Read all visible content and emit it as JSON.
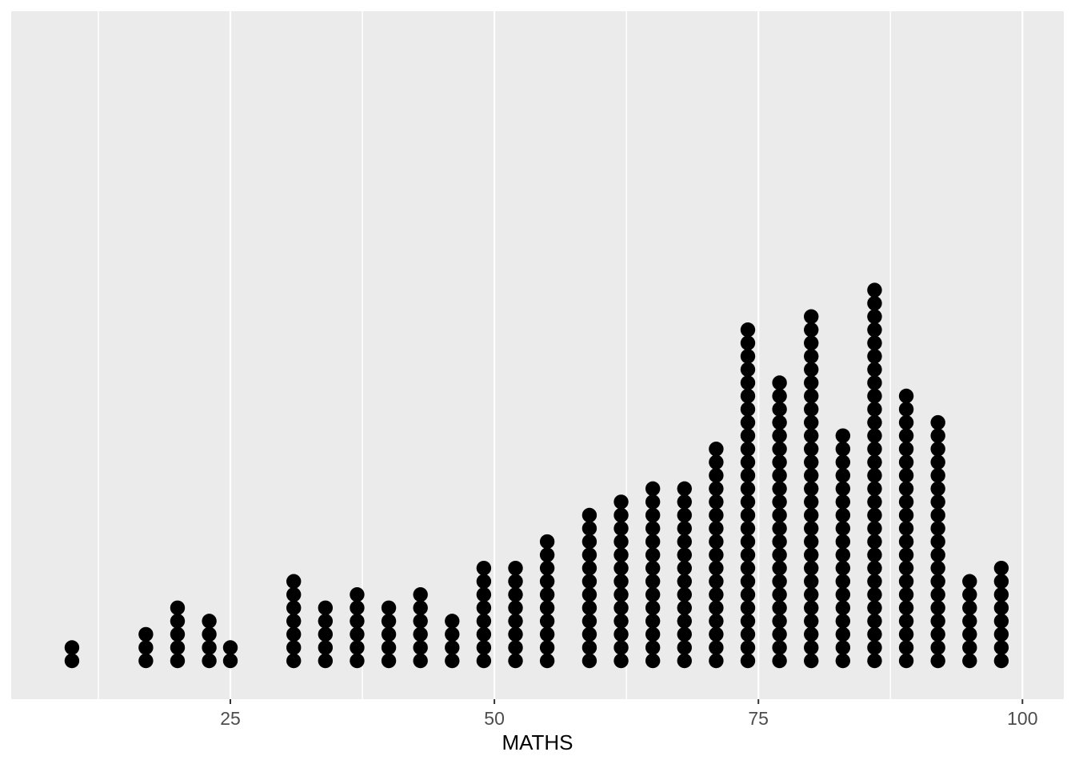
{
  "chart_data": {
    "type": "dotplot",
    "title": "",
    "xlabel": "MATHS",
    "ylabel": "",
    "x_axis_range": [
      4,
      104
    ],
    "x_ticks": [
      25,
      50,
      75,
      100
    ],
    "x_tick_labels": [
      "25",
      "50",
      "75",
      "100"
    ],
    "x_minor_gridlines": [
      12.5,
      37.5,
      62.5,
      87.5
    ],
    "grid": "vertical-only",
    "legend": "none",
    "stacks": [
      {
        "x": 10,
        "count": 2
      },
      {
        "x": 17,
        "count": 3
      },
      {
        "x": 20,
        "count": 5
      },
      {
        "x": 23,
        "count": 4
      },
      {
        "x": 25,
        "count": 2
      },
      {
        "x": 31,
        "count": 7
      },
      {
        "x": 34,
        "count": 5
      },
      {
        "x": 37,
        "count": 6
      },
      {
        "x": 40,
        "count": 5
      },
      {
        "x": 43,
        "count": 6
      },
      {
        "x": 46,
        "count": 4
      },
      {
        "x": 49,
        "count": 8
      },
      {
        "x": 52,
        "count": 8
      },
      {
        "x": 55,
        "count": 10
      },
      {
        "x": 59,
        "count": 12
      },
      {
        "x": 62,
        "count": 13
      },
      {
        "x": 65,
        "count": 14
      },
      {
        "x": 68,
        "count": 14
      },
      {
        "x": 71,
        "count": 17
      },
      {
        "x": 74,
        "count": 26
      },
      {
        "x": 77,
        "count": 22
      },
      {
        "x": 80,
        "count": 27
      },
      {
        "x": 83,
        "count": 18
      },
      {
        "x": 86,
        "count": 29
      },
      {
        "x": 89,
        "count": 21
      },
      {
        "x": 92,
        "count": 19
      },
      {
        "x": 95,
        "count": 7
      },
      {
        "x": 98,
        "count": 8
      }
    ],
    "total_points": 322,
    "colors": {
      "dot": "#000000",
      "panel_background": "#EBEBEB",
      "gridline": "#FFFFFF",
      "tick_mark": "#333333",
      "tick_label": "#4D4D4D",
      "axis_title": "#000000",
      "page_background": "#FFFFFF"
    }
  }
}
